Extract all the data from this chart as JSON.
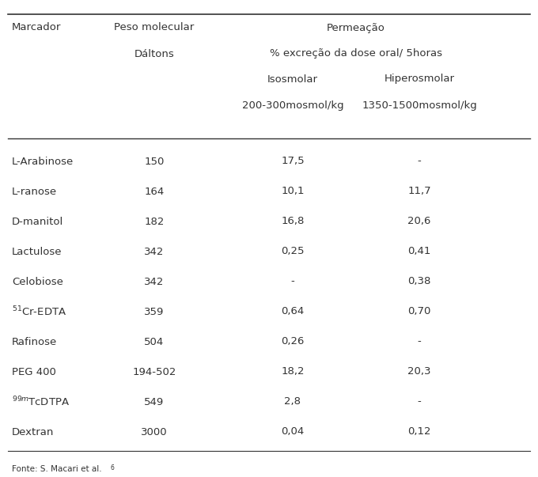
{
  "rows": [
    [
      "L-Arabinose",
      "150",
      "17,5",
      "-"
    ],
    [
      "L-ranose",
      "164",
      "10,1",
      "11,7"
    ],
    [
      "D-manitol",
      "182",
      "16,8",
      "20,6"
    ],
    [
      "Lactulose",
      "342",
      "0,25",
      "0,41"
    ],
    [
      "Celobiose",
      "342",
      "-",
      "0,38"
    ],
    [
      "51Cr-EDTA",
      "359",
      "0,64",
      "0,70"
    ],
    [
      "Rafinose",
      "504",
      "0,26",
      "-"
    ],
    [
      "PEG 400",
      "194-502",
      "18,2",
      "20,3"
    ],
    [
      "99mTcDTPA",
      "549",
      "2,8",
      "-"
    ],
    [
      "Dextran",
      "3000",
      "0,04",
      "0,12"
    ]
  ],
  "bg_color": "#ffffff",
  "text_color": "#333333",
  "font_size": 9.5,
  "footnote": "Fonte: S. Macari et al."
}
